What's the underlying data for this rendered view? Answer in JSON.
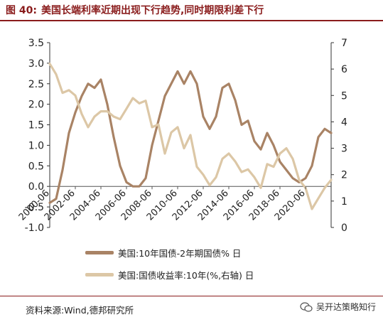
{
  "header": {
    "figure_no": "图 40:",
    "title": "美国长端利率近期出现下行趋势,同时期限利差下行"
  },
  "footer": {
    "source": "资料来源:Wind,德邦研究所",
    "watermark": "吴开达策略知行",
    "watermark_icon": "wechat-icon"
  },
  "colors": {
    "spread": "#a98365",
    "yield": "#dcc7a6",
    "title": "#8a1c1c"
  },
  "chart_data": {
    "type": "line",
    "x_tick_labels": [
      "2000-06",
      "2002-06",
      "2004-06",
      "2006-06",
      "2008-06",
      "2010-06",
      "2012-06",
      "2014-06",
      "2016-06",
      "2018-06",
      "2020-06"
    ],
    "x_range": [
      2000.0,
      2022.0
    ],
    "left_axis": {
      "range": [
        -1.0,
        3.5
      ],
      "ticks": [
        "-1.0",
        "-0.5",
        "0.0",
        "0.5",
        "1.0",
        "1.5",
        "2.0",
        "2.5",
        "3.0",
        "3.5"
      ]
    },
    "right_axis": {
      "range": [
        0,
        7
      ],
      "ticks": [
        "0",
        "1",
        "2",
        "3",
        "4",
        "5",
        "6",
        "7"
      ]
    },
    "series": [
      {
        "name": "美国:10年国债-2年期国债% 日",
        "axis": "left",
        "color": "#a98365",
        "x": [
          2000.0,
          2000.5,
          2001.0,
          2001.5,
          2002.0,
          2002.5,
          2003.0,
          2003.5,
          2004.0,
          2004.5,
          2005.0,
          2005.5,
          2006.0,
          2006.5,
          2007.0,
          2007.5,
          2008.0,
          2008.5,
          2009.0,
          2009.5,
          2010.0,
          2010.5,
          2011.0,
          2011.5,
          2012.0,
          2012.5,
          2013.0,
          2013.5,
          2014.0,
          2014.5,
          2015.0,
          2015.5,
          2016.0,
          2016.5,
          2017.0,
          2017.5,
          2018.0,
          2018.5,
          2019.0,
          2019.5,
          2020.0,
          2020.5,
          2021.0,
          2021.5,
          2022.0
        ],
        "values": [
          -0.4,
          -0.3,
          0.4,
          1.3,
          1.8,
          2.2,
          2.5,
          2.4,
          2.6,
          2.0,
          1.2,
          0.5,
          0.1,
          0.0,
          0.0,
          0.2,
          1.0,
          1.6,
          2.2,
          2.5,
          2.8,
          2.5,
          2.8,
          2.5,
          1.7,
          1.4,
          1.7,
          2.4,
          2.5,
          2.1,
          1.5,
          1.6,
          1.1,
          0.9,
          1.3,
          1.0,
          0.6,
          0.4,
          0.2,
          0.1,
          0.2,
          0.5,
          1.2,
          1.4,
          1.3
        ]
      },
      {
        "name": "美国:国债收益率:10年(%,右轴) 日",
        "axis": "right",
        "color": "#dcc7a6",
        "x": [
          2000.0,
          2000.5,
          2001.0,
          2001.5,
          2002.0,
          2002.5,
          2003.0,
          2003.5,
          2004.0,
          2004.5,
          2005.0,
          2005.5,
          2006.0,
          2006.5,
          2007.0,
          2007.5,
          2008.0,
          2008.5,
          2009.0,
          2009.5,
          2010.0,
          2010.5,
          2011.0,
          2011.5,
          2012.0,
          2012.5,
          2013.0,
          2013.5,
          2014.0,
          2014.5,
          2015.0,
          2015.5,
          2016.0,
          2016.5,
          2017.0,
          2017.5,
          2018.0,
          2018.5,
          2019.0,
          2019.5,
          2020.0,
          2020.5,
          2021.0,
          2021.5,
          2022.0
        ],
        "values": [
          6.2,
          5.8,
          5.1,
          5.2,
          5.0,
          4.3,
          3.8,
          4.2,
          4.4,
          4.4,
          4.2,
          4.1,
          4.5,
          4.9,
          4.7,
          4.8,
          3.8,
          3.9,
          2.8,
          3.6,
          3.8,
          3.0,
          3.5,
          2.3,
          2.0,
          1.6,
          1.9,
          2.6,
          2.8,
          2.5,
          2.1,
          2.2,
          1.9,
          1.5,
          2.4,
          2.3,
          2.8,
          3.0,
          2.6,
          1.8,
          1.5,
          0.7,
          1.1,
          1.5,
          1.8
        ]
      }
    ]
  }
}
